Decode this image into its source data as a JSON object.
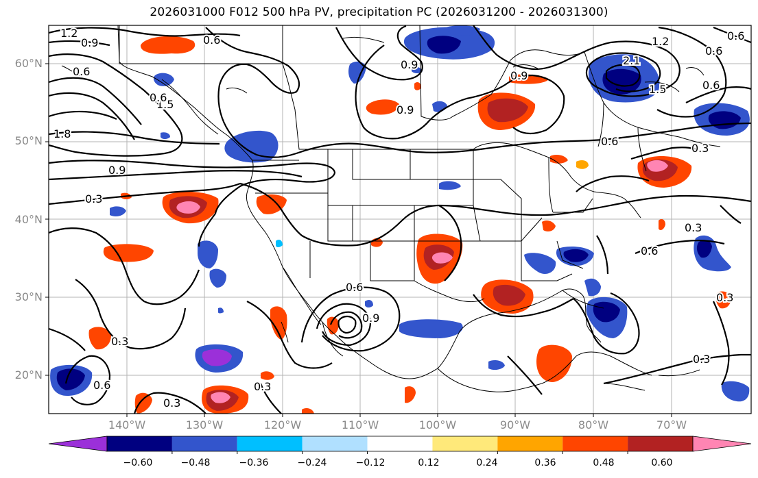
{
  "title": "2026031000 F012 500 hPa PV, precipitation PC (2026031200 - 2026031300)",
  "map": {
    "lat_labels": [
      "60°N",
      "50°N",
      "40°N",
      "30°N",
      "20°N"
    ],
    "lon_labels": [
      "140°W",
      "130°W",
      "120°W",
      "110°W",
      "100°W",
      "90°W",
      "80°W",
      "70°W"
    ],
    "gridlines": true,
    "land_outline": "black"
  },
  "contours": {
    "field": "500 hPa PV",
    "labels": [
      "1.2",
      "0.9",
      "0.6",
      "0.6",
      "0.9",
      "1.5",
      "1.8",
      "0.9",
      "0.3",
      "0.9",
      "0.9",
      "0.6",
      "2.1",
      "1.5",
      "1.2",
      "0.6",
      "0.6",
      "0.6",
      "0.3",
      "0.3",
      "0.6",
      "0.6",
      "0.9",
      "0.3",
      "0.3",
      "0.6",
      "0.3",
      "0.3",
      "0.3",
      "0.6"
    ]
  },
  "colorbar": {
    "ticks": [
      "−0.60",
      "−0.48",
      "−0.36",
      "−0.24",
      "−0.12",
      "0.12",
      "0.24",
      "0.36",
      "0.48",
      "0.60"
    ],
    "colors": [
      "#9b30d9",
      "#000080",
      "#3355cc",
      "#00bfff",
      "#b0e0ff",
      "#ffffff",
      "#ffe97a",
      "#ffa500",
      "#ff4500",
      "#b22222",
      "#ff85b3"
    ],
    "extend": "both"
  }
}
